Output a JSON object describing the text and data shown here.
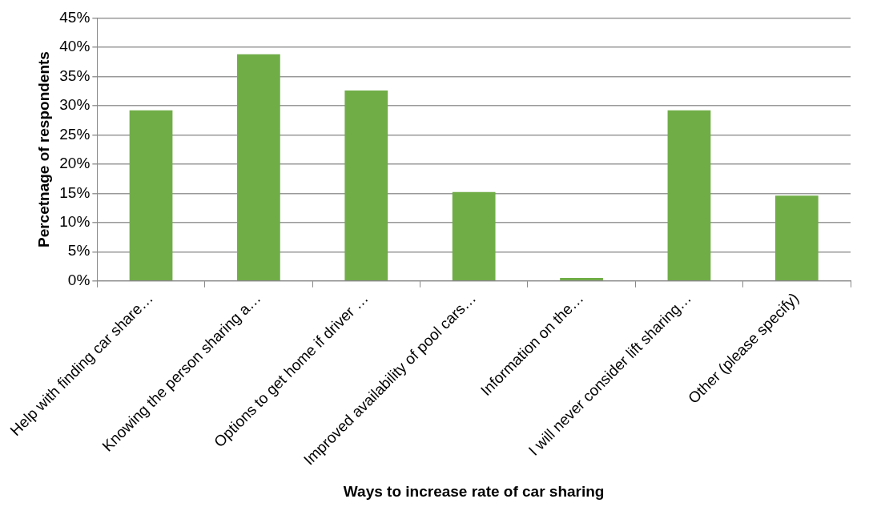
{
  "chart_data": {
    "type": "bar",
    "xlabel": "Ways to increase rate of car sharing",
    "ylabel": "Percetnage of respondents",
    "categories": [
      "Help with finding car share…",
      "Knowing the person sharing a…",
      "Options to get home if driver …",
      "Improved availability of pool cars…",
      "Information on the…",
      "I will never consider lift sharing…",
      "Other (please specify)"
    ],
    "values": [
      29.2,
      38.8,
      32.6,
      15.2,
      0.5,
      29.2,
      14.6
    ],
    "color": "#70ad47",
    "ylim": [
      0,
      45
    ],
    "yticks": [
      {
        "value": 0,
        "label": "0%"
      },
      {
        "value": 5,
        "label": "5%"
      },
      {
        "value": 10,
        "label": "10%"
      },
      {
        "value": 15,
        "label": "15%"
      },
      {
        "value": 20,
        "label": "20%"
      },
      {
        "value": 25,
        "label": "25%"
      },
      {
        "value": 30,
        "label": "30%"
      },
      {
        "value": 35,
        "label": "35%"
      },
      {
        "value": 40,
        "label": "40%"
      },
      {
        "value": 45,
        "label": "45%"
      }
    ],
    "grid": "y",
    "legend": false
  }
}
